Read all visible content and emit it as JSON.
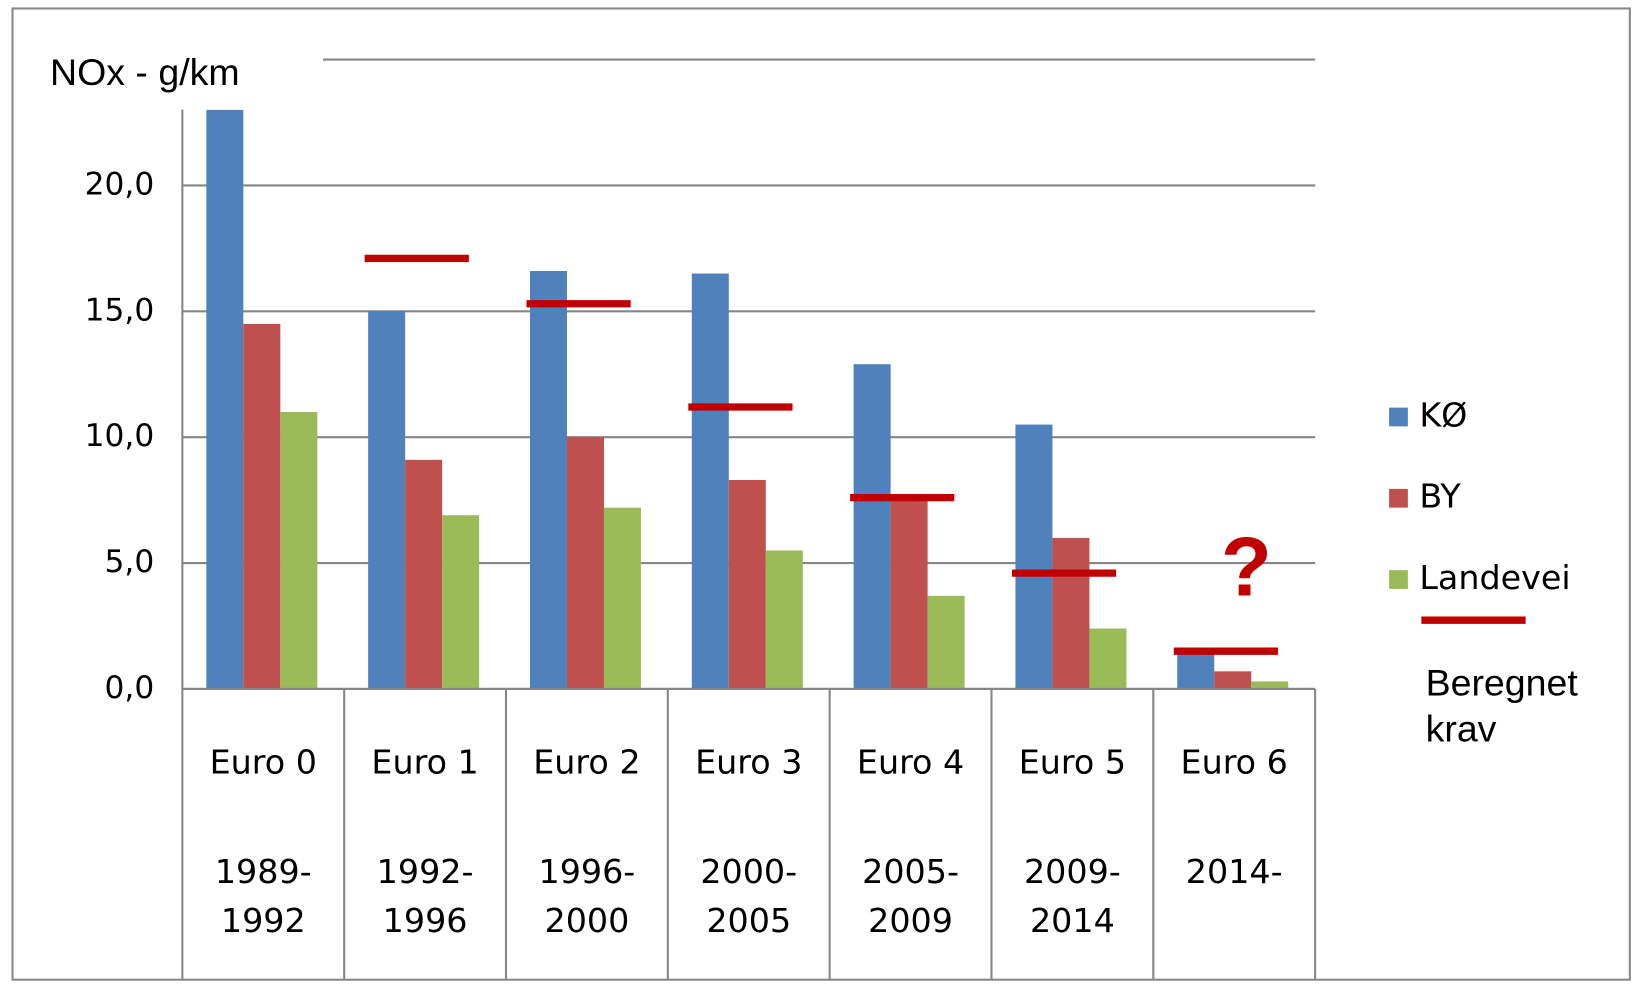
{
  "chart_data": {
    "type": "bar",
    "y_label": "NOx - g/km",
    "categories": [
      "Euro 0",
      "Euro 1",
      "Euro 2",
      "Euro 3",
      "Euro 4",
      "Euro 5",
      "Euro 6"
    ],
    "periods": [
      [
        "1989-",
        "1992"
      ],
      [
        "1992-",
        "1996"
      ],
      [
        "1996-",
        "2000"
      ],
      [
        "2000-",
        "2005"
      ],
      [
        "2005-",
        "2009"
      ],
      [
        "2009-",
        "2014"
      ],
      [
        "2014-"
      ]
    ],
    "series": [
      {
        "name": "KØ",
        "color": "#4f81bd",
        "values": [
          23.0,
          15.0,
          16.6,
          16.5,
          12.9,
          10.5,
          1.4
        ]
      },
      {
        "name": "BY",
        "color": "#c0504d",
        "values": [
          14.5,
          9.1,
          10.0,
          8.3,
          7.6,
          6.0,
          0.7
        ]
      },
      {
        "name": "Landevei",
        "color": "#9bbb59",
        "values": [
          11.0,
          6.9,
          7.2,
          5.5,
          3.7,
          2.4,
          0.3
        ]
      }
    ],
    "requirement": {
      "label": [
        "Beregnet",
        "krav"
      ],
      "color": "#c00000",
      "values": [
        null,
        17.1,
        15.3,
        11.2,
        7.6,
        4.6,
        1.5
      ]
    },
    "annotation": "?",
    "ylim": [
      0,
      25
    ],
    "yticks": [
      {
        "value": 0,
        "label": "0,0"
      },
      {
        "value": 5,
        "label": "5,0"
      },
      {
        "value": 10,
        "label": "10,0"
      },
      {
        "value": 15,
        "label": "15,0"
      },
      {
        "value": 20,
        "label": "20,0"
      }
    ],
    "grid": true,
    "legend": "right"
  }
}
